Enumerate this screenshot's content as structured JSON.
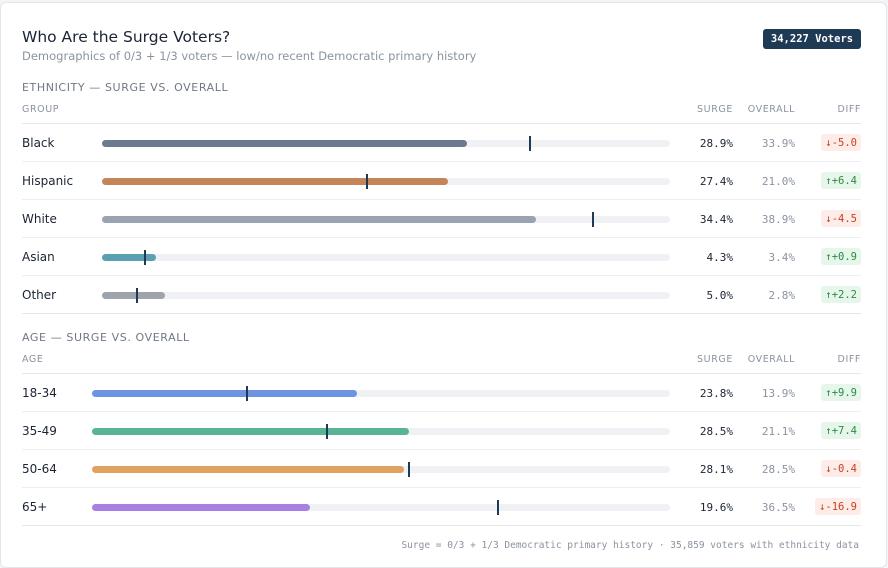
{
  "header": {
    "title": "Who Are the Surge Voters?",
    "subtitle": "Demographics of 0/3 + 1/3 voters — low/no recent Democratic primary history",
    "badge": "34,227 Voters"
  },
  "columns": {
    "surge": "SURGE",
    "overall": "OVERALL",
    "diff": "DIFF"
  },
  "chart_data": [
    {
      "type": "bar",
      "title": "ETHNICITY — SURGE VS. OVERALL",
      "group_label": "GROUP",
      "xlim": [
        0,
        45
      ],
      "rows": [
        {
          "label": "Black",
          "surge": 28.9,
          "overall": 33.9,
          "surge_text": "28.9%",
          "overall_text": "33.9%",
          "diff_text": "↓-5.0",
          "direction": "down",
          "color": "#6b7a8f"
        },
        {
          "label": "Hispanic",
          "surge": 27.4,
          "overall": 21.0,
          "surge_text": "27.4%",
          "overall_text": "21.0%",
          "diff_text": "↑+6.4",
          "direction": "up",
          "color": "#c58559"
        },
        {
          "label": "White",
          "surge": 34.4,
          "overall": 38.9,
          "surge_text": "34.4%",
          "overall_text": "38.9%",
          "diff_text": "↓-4.5",
          "direction": "down",
          "color": "#9aa3b0"
        },
        {
          "label": "Asian",
          "surge": 4.3,
          "overall": 3.4,
          "surge_text": "4.3%",
          "overall_text": "3.4%",
          "diff_text": "↑+0.9",
          "direction": "up",
          "color": "#5aa0b0"
        },
        {
          "label": "Other",
          "surge": 5.0,
          "overall": 2.8,
          "surge_text": "5.0%",
          "overall_text": "2.8%",
          "diff_text": "↑+2.2",
          "direction": "up",
          "color": "#9fa3ab"
        }
      ]
    },
    {
      "type": "bar",
      "title": "AGE — SURGE VS. OVERALL",
      "group_label": "AGE",
      "xlim": [
        0,
        52
      ],
      "rows": [
        {
          "label": "18-34",
          "surge": 23.8,
          "overall": 13.9,
          "surge_text": "23.8%",
          "overall_text": "13.9%",
          "diff_text": "↑+9.9",
          "direction": "up",
          "color": "#6e93e3"
        },
        {
          "label": "35-49",
          "surge": 28.5,
          "overall": 21.1,
          "surge_text": "28.5%",
          "overall_text": "21.1%",
          "diff_text": "↑+7.4",
          "direction": "up",
          "color": "#58b493"
        },
        {
          "label": "50-64",
          "surge": 28.1,
          "overall": 28.5,
          "surge_text": "28.1%",
          "overall_text": "28.5%",
          "diff_text": "↓-0.4",
          "direction": "down",
          "color": "#e2a25f"
        },
        {
          "label": "65+",
          "surge": 19.6,
          "overall": 36.5,
          "surge_text": "19.6%",
          "overall_text": "36.5%",
          "diff_text": "↓-16.9",
          "direction": "down",
          "color": "#a77fe5"
        }
      ]
    }
  ],
  "footer": "Surge = 0/3 + 1/3 Democratic primary history · 35,859 voters with ethnicity data"
}
